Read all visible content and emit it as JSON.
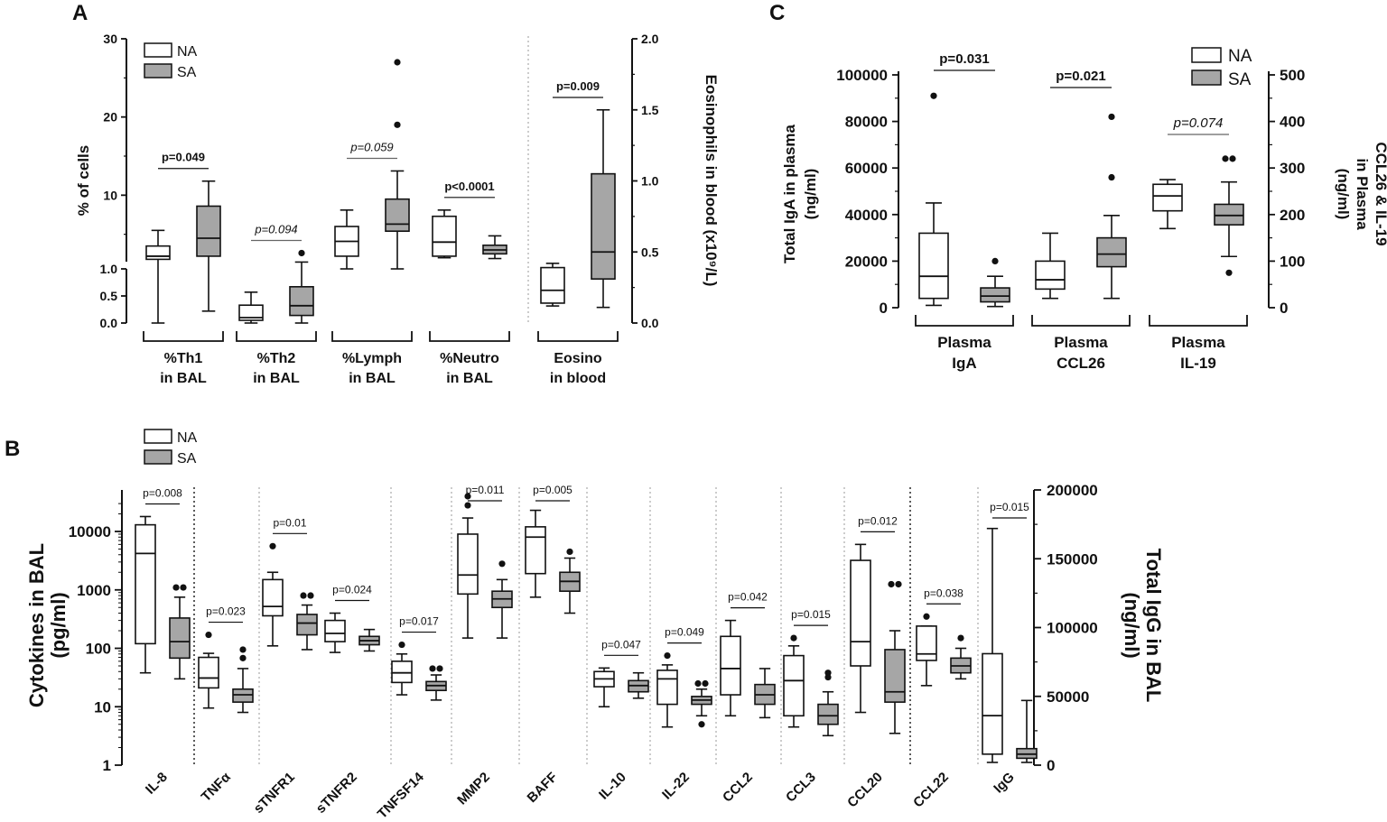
{
  "colors": {
    "na_fill": "#ffffff",
    "sa_fill": "#a6a6a6",
    "stroke": "#111111",
    "divider": "#9a9a9a"
  },
  "panel_labels": {
    "a": "A",
    "b": "B",
    "c": "C"
  },
  "chart_data": [
    {
      "id": "A",
      "type": "boxplot",
      "title": "A",
      "legend": [
        "NA",
        "SA"
      ],
      "legend_position": "top-left",
      "ylabel_left": "% of cells",
      "ylabel_right": "Eosinophils in blood (x10⁹/L)",
      "yticks_left_upper": [
        "10",
        "20",
        "30"
      ],
      "yticks_left_lower": [
        "0.0",
        "0.5",
        "1.0"
      ],
      "yticks_right": [
        "0.0",
        "0.5",
        "1.0",
        "1.5",
        "2.0"
      ],
      "y_axis_break": [
        1.0,
        1.5
      ],
      "ylim_left": [
        0,
        30
      ],
      "ylim_right": [
        0,
        2.0
      ],
      "groups": [
        {
          "label": "%Th1 in BAL",
          "label_lines": [
            "%Th1",
            "in BAL"
          ],
          "pvalue": "p=0.049",
          "italic": false,
          "NA": {
            "min": 0.0,
            "q1": 1.8,
            "median": 2.2,
            "q3": 3.5,
            "max": 5.5,
            "outliers": []
          },
          "SA": {
            "min": 0.22,
            "q1": 2.2,
            "median": 4.5,
            "q3": 8.6,
            "max": 11.8,
            "outliers": []
          }
        },
        {
          "label": "%Th2 in BAL",
          "label_lines": [
            "%Th2",
            "in BAL"
          ],
          "pvalue": "p=0.094",
          "italic": true,
          "NA": {
            "min": 0.0,
            "q1": 0.05,
            "median": 0.1,
            "q3": 0.33,
            "max": 0.57,
            "outliers": []
          },
          "SA": {
            "min": 0.0,
            "q1": 0.14,
            "median": 0.32,
            "q3": 0.67,
            "max": 1.45,
            "outliers": [
              2.6
            ]
          }
        },
        {
          "label": "%Lymph in BAL",
          "label_lines": [
            "%Lymph",
            "in BAL"
          ],
          "pvalue": "p=0.059",
          "italic": true,
          "NA": {
            "min": 1.0,
            "q1": 2.2,
            "median": 4.1,
            "q3": 6.0,
            "max": 8.1,
            "outliers": []
          },
          "SA": {
            "min": 1.0,
            "q1": 5.4,
            "median": 6.3,
            "q3": 9.5,
            "max": 13.1,
            "outliers": [
              19.0,
              27.0
            ]
          }
        },
        {
          "label": "%Neutro in BAL",
          "label_lines": [
            "%Neutro",
            "in BAL"
          ],
          "pvalue": "p<0.0001",
          "italic": false,
          "NA": {
            "min": 2.0,
            "q1": 2.2,
            "median": 4.0,
            "q3": 7.3,
            "max": 8.1,
            "outliers": []
          },
          "SA": {
            "min": 1.9,
            "q1": 2.5,
            "median": 3.0,
            "q3": 3.6,
            "max": 4.8,
            "outliers": []
          }
        }
      ],
      "right_axis_group": {
        "label": "Eosino in blood",
        "label_lines": [
          "Eosino",
          "in blood"
        ],
        "pvalue": "p=0.009",
        "italic": false,
        "NA": {
          "min": 0.12,
          "q1": 0.14,
          "median": 0.23,
          "q3": 0.39,
          "max": 0.42,
          "outliers": []
        },
        "SA": {
          "min": 0.11,
          "q1": 0.31,
          "median": 0.5,
          "q3": 1.05,
          "max": 1.5,
          "outliers": []
        }
      }
    },
    {
      "id": "B",
      "type": "boxplot",
      "title": "B",
      "yscale": "log",
      "legend": [
        "NA",
        "SA"
      ],
      "legend_position": "top-left",
      "ylabel_left": [
        "Cytokines in BAL",
        "(pg/ml)"
      ],
      "ylabel_right": [
        "Total IgG in BAL",
        "(ng/ml)"
      ],
      "yticks_left": [
        "1",
        "10",
        "100",
        "1000",
        "10000"
      ],
      "yticks_right": [
        "0",
        "50000",
        "100000",
        "150000",
        "200000"
      ],
      "ylim_left": [
        1,
        30000
      ],
      "ylim_right": [
        0,
        200000
      ],
      "groups": [
        {
          "label": "IL-8",
          "pvalue": "p=0.008",
          "NA": {
            "min": 38,
            "q1": 120,
            "median": 4200,
            "q3": 13000,
            "max": 18000,
            "outliers": []
          },
          "SA": {
            "min": 30,
            "q1": 68,
            "median": 130,
            "q3": 330,
            "max": 750,
            "outliers": [
              1100,
              1100
            ]
          }
        },
        {
          "label": "TNFα",
          "pvalue": "p=0.023",
          "NA": {
            "min": 9.5,
            "q1": 21,
            "median": 31,
            "q3": 70,
            "max": 82,
            "outliers": [
              170
            ]
          },
          "SA": {
            "min": 8,
            "q1": 12,
            "median": 16,
            "q3": 20,
            "max": 45,
            "outliers": [
              68,
              95
            ]
          }
        },
        {
          "label": "sTNFR1",
          "pvalue": "p=0.01",
          "NA": {
            "min": 110,
            "q1": 360,
            "median": 520,
            "q3": 1500,
            "max": 2000,
            "outliers": [
              5600
            ]
          },
          "SA": {
            "min": 95,
            "q1": 170,
            "median": 270,
            "q3": 380,
            "max": 550,
            "outliers": [
              800,
              800
            ]
          }
        },
        {
          "label": "sTNFR2",
          "pvalue": "p=0.024",
          "NA": {
            "min": 85,
            "q1": 130,
            "median": 180,
            "q3": 300,
            "max": 400,
            "outliers": []
          },
          "SA": {
            "min": 90,
            "q1": 115,
            "median": 135,
            "q3": 160,
            "max": 210,
            "outliers": []
          }
        },
        {
          "label": "TNFSF14",
          "pvalue": "p=0.017",
          "NA": {
            "min": 16,
            "q1": 26,
            "median": 38,
            "q3": 60,
            "max": 80,
            "outliers": [
              115
            ]
          },
          "SA": {
            "min": 13,
            "q1": 19,
            "median": 23,
            "q3": 27,
            "max": 35,
            "outliers": [
              45,
              45
            ]
          }
        },
        {
          "label": "MMP2",
          "pvalue": "p=0.011",
          "NA": {
            "min": 150,
            "q1": 850,
            "median": 1800,
            "q3": 9000,
            "max": 17000,
            "outliers": [
              28000,
              40000
            ]
          },
          "SA": {
            "min": 150,
            "q1": 500,
            "median": 700,
            "q3": 950,
            "max": 1500,
            "outliers": [
              2800
            ]
          }
        },
        {
          "label": "BAFF",
          "pvalue": "p=0.005",
          "NA": {
            "min": 750,
            "q1": 1900,
            "median": 8000,
            "q3": 12000,
            "max": 23000,
            "outliers": []
          },
          "SA": {
            "min": 400,
            "q1": 950,
            "median": 1400,
            "q3": 2000,
            "max": 3500,
            "outliers": [
              4500
            ]
          }
        },
        {
          "label": "IL-10",
          "pvalue": "p=0.047",
          "NA": {
            "min": 10,
            "q1": 22,
            "median": 30,
            "q3": 40,
            "max": 46,
            "outliers": []
          },
          "SA": {
            "min": 14,
            "q1": 18,
            "median": 23,
            "q3": 28,
            "max": 38,
            "outliers": []
          }
        },
        {
          "label": "IL-22",
          "pvalue": "p=0.049",
          "NA": {
            "min": 4.5,
            "q1": 11,
            "median": 30,
            "q3": 42,
            "max": 52,
            "outliers": [
              75
            ]
          },
          "SA": {
            "min": 7,
            "q1": 11,
            "median": 13,
            "q3": 15,
            "max": 20,
            "outliers": [
              25,
              25,
              5
            ]
          }
        },
        {
          "label": "CCL2",
          "pvalue": "p=0.042",
          "NA": {
            "min": 7,
            "q1": 16,
            "median": 45,
            "q3": 160,
            "max": 300,
            "outliers": []
          },
          "SA": {
            "min": 6.5,
            "q1": 11,
            "median": 16,
            "q3": 24,
            "max": 45,
            "outliers": []
          }
        },
        {
          "label": "CCL3",
          "pvalue": "p=0.015",
          "NA": {
            "min": 4.5,
            "q1": 7,
            "median": 28,
            "q3": 75,
            "max": 110,
            "outliers": [
              150
            ]
          },
          "SA": {
            "min": 3.2,
            "q1": 5,
            "median": 7,
            "q3": 11,
            "max": 18,
            "outliers": [
              32,
              38
            ]
          }
        },
        {
          "label": "CCL20",
          "pvalue": "p=0.012",
          "NA": {
            "min": 8,
            "q1": 50,
            "median": 130,
            "q3": 3200,
            "max": 6000,
            "outliers": []
          },
          "SA": {
            "min": 3.5,
            "q1": 12,
            "median": 18,
            "q3": 95,
            "max": 200,
            "outliers": [
              1250,
              1250
            ]
          }
        },
        {
          "label": "CCL22",
          "pvalue": "p=0.038",
          "NA": {
            "min": 23,
            "q1": 62,
            "median": 80,
            "q3": 240,
            "max": 240,
            "outliers": [
              350
            ]
          },
          "SA": {
            "min": 30,
            "q1": 38,
            "median": 50,
            "q3": 68,
            "max": 100,
            "outliers": [
              150
            ]
          }
        }
      ],
      "right_axis_group": {
        "label": "IgG",
        "pvalue": "p=0.015",
        "NA": {
          "min": 2000,
          "q1": 8000,
          "median": 36000,
          "q3": 81000,
          "max": 172000,
          "outliers": []
        },
        "SA": {
          "min": 2000,
          "q1": 5000,
          "median": 8000,
          "q3": 12000,
          "max": 47000,
          "outliers": []
        }
      }
    },
    {
      "id": "C",
      "type": "boxplot",
      "title": "C",
      "legend": [
        "NA",
        "SA"
      ],
      "legend_position": "top-right",
      "ylabel_left": [
        "Total IgA in plasma",
        "(ng/ml)"
      ],
      "ylabel_right": [
        "CCL26 & IL-19",
        "in Plasma",
        "(ng/ml)"
      ],
      "yticks_left": [
        "0",
        "20000",
        "40000",
        "60000",
        "80000",
        "100000"
      ],
      "yticks_right": [
        "0",
        "100",
        "200",
        "300",
        "400",
        "500"
      ],
      "ylim_left": [
        0,
        100000
      ],
      "ylim_right": [
        0,
        500
      ],
      "left_axis_group": {
        "label": "Plasma IgA",
        "label_lines": [
          "Plasma",
          "IgA"
        ],
        "pvalue": "p=0.031",
        "italic": false,
        "NA": {
          "min": 1000,
          "q1": 4000,
          "median": 13500,
          "q3": 32000,
          "max": 45000,
          "outliers": [
            91000
          ]
        },
        "SA": {
          "min": 500,
          "q1": 2500,
          "median": 5000,
          "q3": 8500,
          "max": 13500,
          "outliers": [
            20000
          ]
        }
      },
      "groups": [
        {
          "label": "Plasma CCL26",
          "label_lines": [
            "Plasma",
            "CCL26"
          ],
          "pvalue": "p=0.021",
          "italic": false,
          "NA": {
            "min": 20,
            "q1": 40,
            "median": 60,
            "q3": 100,
            "max": 160,
            "outliers": []
          },
          "SA": {
            "min": 20,
            "q1": 88,
            "median": 115,
            "q3": 150,
            "max": 198,
            "outliers": [
              280,
              410
            ]
          }
        },
        {
          "label": "Plasma IL-19",
          "label_lines": [
            "Plasma",
            "IL-19"
          ],
          "pvalue": "p=0.074",
          "italic": true,
          "NA": {
            "min": 170,
            "q1": 208,
            "median": 240,
            "q3": 265,
            "max": 275,
            "outliers": []
          },
          "SA": {
            "min": 110,
            "q1": 178,
            "median": 198,
            "q3": 222,
            "max": 270,
            "outliers": [
              75,
              320,
              320
            ]
          }
        }
      ]
    }
  ]
}
